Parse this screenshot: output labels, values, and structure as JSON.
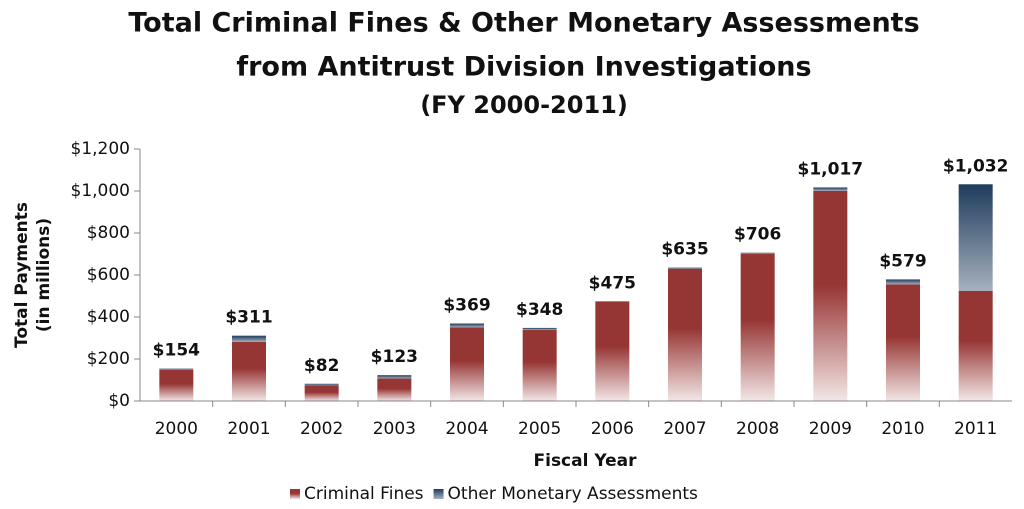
{
  "chart_data": {
    "type": "stacked_bar",
    "title": [
      "Total Criminal Fines & Other Monetary Assessments",
      "from Antitrust Division Investigations",
      "(FY 2000-2011)"
    ],
    "xlabel": "Fiscal Year",
    "ylabel": [
      "Total Payments",
      "(in millions)"
    ],
    "categories": [
      "2000",
      "2001",
      "2002",
      "2003",
      "2004",
      "2005",
      "2006",
      "2007",
      "2008",
      "2009",
      "2010",
      "2011"
    ],
    "series": [
      {
        "name": "Criminal Fines",
        "color": "#963634",
        "values": [
          148,
          281,
          75,
          107,
          350,
          338,
          473,
          630,
          701,
          1000,
          555,
          524
        ]
      },
      {
        "name": "Other Monetary Assessments",
        "color": "#1f3b5c",
        "values": [
          6,
          30,
          7,
          16,
          19,
          10,
          2,
          5,
          5,
          17,
          24,
          508
        ]
      }
    ],
    "totals": {
      "values": [
        154,
        311,
        82,
        123,
        369,
        348,
        475,
        635,
        706,
        1017,
        579,
        1032
      ],
      "value_labels": [
        "$154",
        "$311",
        "$82",
        "$123",
        "$369",
        "$348",
        "$475",
        "$635",
        "$706",
        "$1,017",
        "$579",
        "$1,032"
      ]
    },
    "ylim": [
      0,
      1200
    ],
    "yticks": [
      {
        "value": 0,
        "label": "$0"
      },
      {
        "value": 200,
        "label": "$200"
      },
      {
        "value": 400,
        "label": "$400"
      },
      {
        "value": 600,
        "label": "$600"
      },
      {
        "value": 800,
        "label": "$800"
      },
      {
        "value": 1000,
        "label": "$1,000"
      },
      {
        "value": 1200,
        "label": "$1,200"
      }
    ],
    "grid": false,
    "legend": "bottom"
  }
}
